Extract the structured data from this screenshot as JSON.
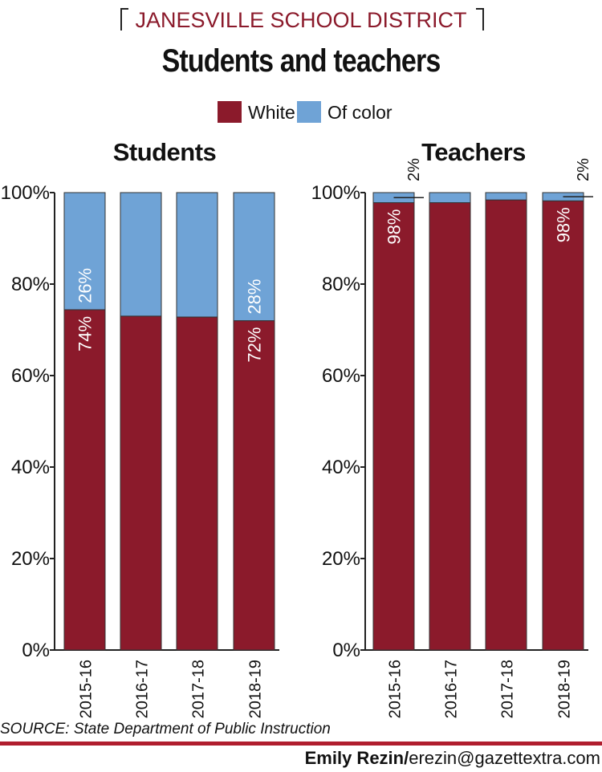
{
  "header": {
    "kicker": "JANESVILLE SCHOOL DISTRICT",
    "title": "Students and teachers"
  },
  "legend": [
    {
      "label": "White",
      "color": "#8b1a2b"
    },
    {
      "label": "Of color",
      "color": "#6fa3d6"
    }
  ],
  "footer": {
    "source": "SOURCE: State Department of Public Instruction",
    "credit_name": "Emily Rezin/",
    "credit_email": "erezin@gazettextra.com"
  },
  "colors": {
    "white": "#8b1a2b",
    "of_color": "#6fa3d6",
    "rule": "#b01e2e"
  },
  "chart_data": [
    {
      "type": "bar",
      "stacked": true,
      "title": "Students",
      "categories": [
        "2015-16",
        "2016-17",
        "2017-18",
        "2018-19"
      ],
      "series": [
        {
          "name": "White",
          "values": [
            74.4,
            73,
            72.8,
            72
          ]
        },
        {
          "name": "Of color",
          "values": [
            25.6,
            27,
            27.2,
            28
          ]
        }
      ],
      "ylim": [
        0,
        100
      ],
      "yticks": [
        "0%",
        "20%",
        "40%",
        "60%",
        "80%",
        "100%"
      ],
      "labels": [
        {
          "category": "2015-16",
          "white": "74%",
          "of_color": "26%"
        },
        {
          "category": "2018-19",
          "white": "72%",
          "of_color": "28%"
        }
      ]
    },
    {
      "type": "bar",
      "stacked": true,
      "title": "Teachers",
      "categories": [
        "2015-16",
        "2016-17",
        "2017-18",
        "2018-19"
      ],
      "series": [
        {
          "name": "White",
          "values": [
            97.8,
            97.8,
            98.4,
            98.2
          ]
        },
        {
          "name": "Of color",
          "values": [
            2.2,
            2.2,
            1.6,
            1.8
          ]
        }
      ],
      "ylim": [
        0,
        100
      ],
      "yticks": [
        "0%",
        "20%",
        "40%",
        "60%",
        "80%",
        "100%"
      ],
      "labels": [
        {
          "category": "2015-16",
          "white": "98%",
          "of_color": "2%"
        },
        {
          "category": "2018-19",
          "white": "98%",
          "of_color": "2%"
        }
      ]
    }
  ]
}
